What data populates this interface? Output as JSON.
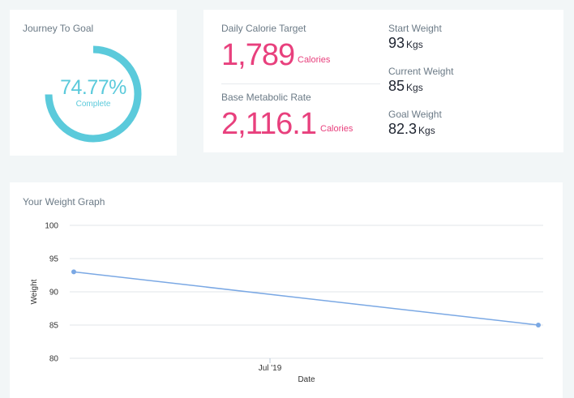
{
  "journey": {
    "title": "Journey To Goal",
    "progress_percent": 74.77,
    "percent_text": "74.77%",
    "complete_label": "Complete",
    "ring_color": "#5bcadb"
  },
  "stats": {
    "daily_calorie": {
      "label": "Daily Calorie Target",
      "value": "1,789",
      "unit": "Calories"
    },
    "bmr": {
      "label": "Base Metabolic Rate",
      "value": "2,116.1",
      "unit": "Calories"
    },
    "start_weight": {
      "label": "Start Weight",
      "value": "93",
      "unit": "Kgs"
    },
    "current_weight": {
      "label": "Current Weight",
      "value": "85",
      "unit": "Kgs"
    },
    "goal_weight": {
      "label": "Goal Weight",
      "value": "82.3",
      "unit": "Kgs"
    },
    "accent_color": "#e8407d"
  },
  "graph": {
    "title": "Your Weight Graph"
  },
  "chart_data": {
    "type": "line",
    "x_tick_labels": [
      "Jul '19"
    ],
    "y_ticks": [
      80,
      85,
      90,
      95,
      100
    ],
    "ylim": [
      80,
      100
    ],
    "xlabel": "Date",
    "ylabel": "Weight",
    "grid": true,
    "series": [
      {
        "values": [
          93,
          85
        ],
        "color": "#7aa8e4"
      }
    ]
  }
}
